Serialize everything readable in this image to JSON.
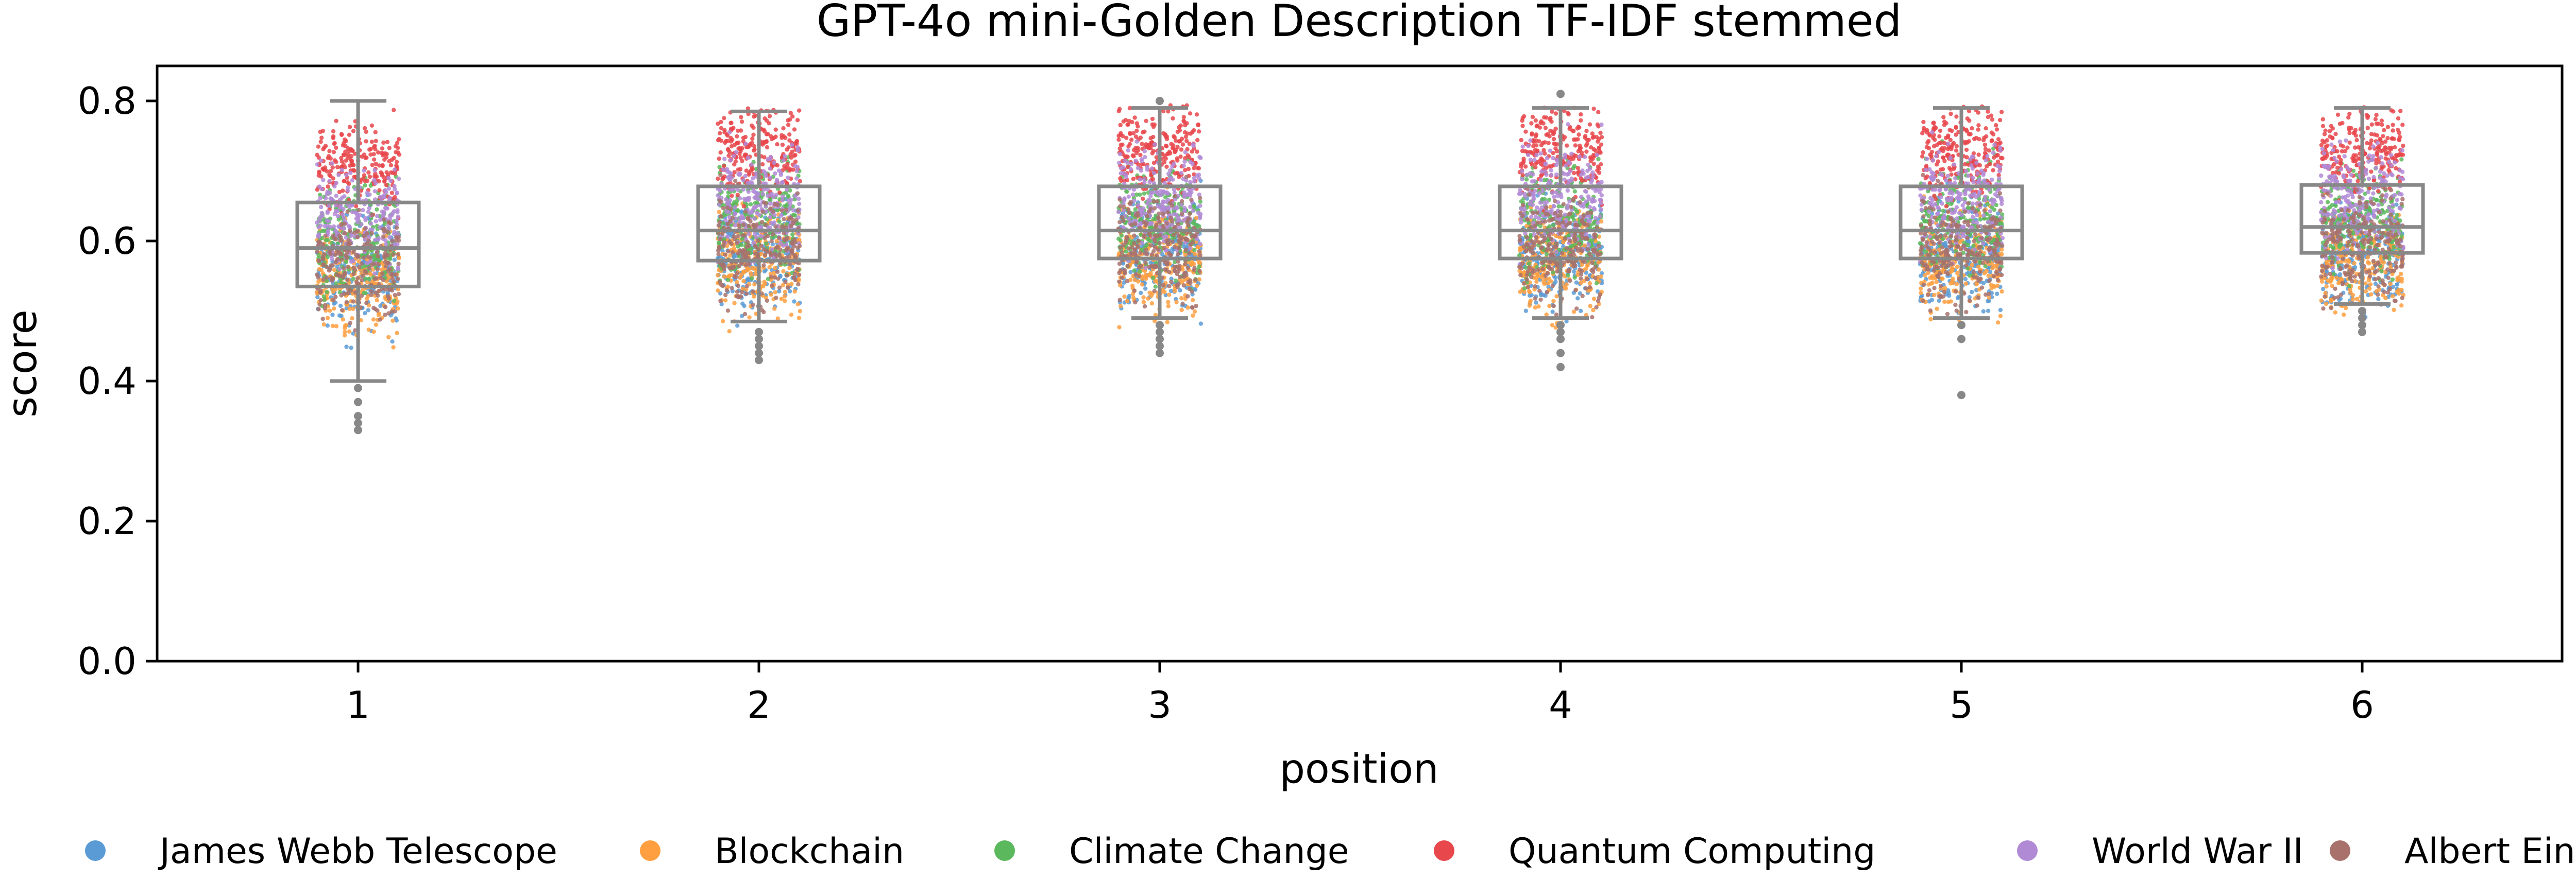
{
  "chart_data": {
    "type": "box-strip",
    "title": "GPT-4o mini-Golden Description TF-IDF stemmed",
    "xlabel": "position",
    "ylabel": "score",
    "ylim": [
      0.0,
      0.85
    ],
    "yticks": [
      "0.0",
      "0.2",
      "0.4",
      "0.6",
      "0.8"
    ],
    "categories": [
      "1",
      "2",
      "3",
      "4",
      "5",
      "6"
    ],
    "boxes": [
      {
        "position": "1",
        "whisker_low": 0.4,
        "q1": 0.535,
        "median": 0.59,
        "q3": 0.655,
        "whisker_high": 0.8,
        "outliers": [
          0.39,
          0.37,
          0.35,
          0.34,
          0.33
        ]
      },
      {
        "position": "2",
        "whisker_low": 0.485,
        "q1": 0.572,
        "median": 0.615,
        "q3": 0.678,
        "whisker_high": 0.785,
        "outliers": [
          0.47,
          0.46,
          0.45,
          0.44,
          0.43
        ]
      },
      {
        "position": "3",
        "whisker_low": 0.49,
        "q1": 0.575,
        "median": 0.615,
        "q3": 0.678,
        "whisker_high": 0.79,
        "outliers": [
          0.48,
          0.47,
          0.46,
          0.45,
          0.44,
          0.8
        ]
      },
      {
        "position": "4",
        "whisker_low": 0.49,
        "q1": 0.575,
        "median": 0.615,
        "q3": 0.678,
        "whisker_high": 0.79,
        "outliers": [
          0.48,
          0.47,
          0.46,
          0.44,
          0.42,
          0.81
        ]
      },
      {
        "position": "5",
        "whisker_low": 0.49,
        "q1": 0.575,
        "median": 0.615,
        "q3": 0.678,
        "whisker_high": 0.79,
        "outliers": [
          0.48,
          0.46,
          0.38
        ]
      },
      {
        "position": "6",
        "whisker_low": 0.51,
        "q1": 0.583,
        "median": 0.62,
        "q3": 0.68,
        "whisker_high": 0.79,
        "outliers": [
          0.5,
          0.49,
          0.48,
          0.47
        ]
      }
    ],
    "series": [
      {
        "name": "James Webb Telescope",
        "color": "#5b9bd5",
        "center": 0.58,
        "spread": 0.05
      },
      {
        "name": "Blockchain",
        "color": "#ff9f40",
        "center": 0.57,
        "spread": 0.05
      },
      {
        "name": "Climate Change",
        "color": "#5cb85c",
        "center": 0.63,
        "spread": 0.05
      },
      {
        "name": "Quantum Computing",
        "color": "#e8474b",
        "center": 0.73,
        "spread": 0.04
      },
      {
        "name": "World War II",
        "color": "#b18ad6",
        "center": 0.66,
        "spread": 0.05
      },
      {
        "name": "Albert Einstein",
        "color": "#a8716c",
        "center": 0.59,
        "spread": 0.05
      }
    ],
    "box_color": "#888888",
    "legend_position": "bottom"
  }
}
